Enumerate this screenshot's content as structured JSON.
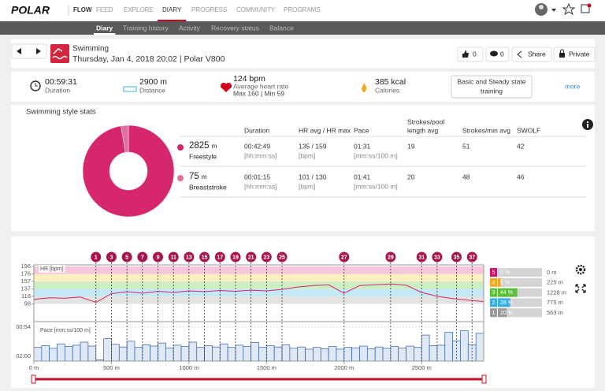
{
  "nav": {
    "logo": "POLAR",
    "items": [
      "FLOW",
      "FEED",
      "EXPLORE",
      "DIARY",
      "PROGRESS",
      "COMMUNITY",
      "PROGRAMS"
    ],
    "active": 3
  },
  "subnav": {
    "items": [
      "Diary",
      "Training history",
      "Activity",
      "Recovery status",
      "Balance"
    ],
    "active": 0
  },
  "session": {
    "sport": "Swimming",
    "subtitle": "Thursday, Jan 4, 2018 20:02 | Polar V800",
    "likes": 0,
    "comments": 0,
    "share": "Share",
    "privacy": "Private"
  },
  "summary": {
    "items": [
      {
        "value": "00:59:31",
        "label": "Duration"
      },
      {
        "value": "2900 m",
        "label": "Distance"
      },
      {
        "value": "124 bpm",
        "label": "Average heart rate",
        "detail": "Max 160 | Min 59"
      },
      {
        "value": "385 kcal",
        "label": "Calories"
      }
    ],
    "benefit": [
      "Basic and Steady state",
      "training"
    ],
    "more": "more"
  },
  "style_stats": {
    "title": "Swimming style stats",
    "columns": [
      [
        "Duration"
      ],
      [
        "HR avg / HR max"
      ],
      [
        "Pace"
      ],
      [
        "Strokes/pool",
        "length avg"
      ],
      [
        "Strokes/min avg"
      ],
      [
        "SWOLF"
      ]
    ],
    "rows": [
      {
        "distance": 2825,
        "unit": "m",
        "style": "Freestyle",
        "color": "#d6266d",
        "cells": [
          [
            "00:42:49",
            "[hh:mm:ss]"
          ],
          [
            "135 / 159",
            "[bpm]"
          ],
          [
            "01:31",
            "[mm:ss/100 m]"
          ],
          [
            19
          ],
          [
            51
          ],
          [
            42
          ]
        ]
      },
      {
        "distance": 75,
        "unit": "m",
        "style": "Breaststroke",
        "color": "#e36f9f",
        "cells": [
          [
            "00:01:15",
            "[hh:mm:ss]"
          ],
          [
            "101 / 130",
            "[bpm]"
          ],
          [
            "01:41",
            "[mm:ss/100 m]"
          ],
          [
            20
          ],
          [
            48
          ],
          [
            46
          ]
        ]
      }
    ]
  },
  "laps": {
    "labels": [
      1,
      3,
      5,
      7,
      9,
      11,
      13,
      15,
      17,
      19,
      21,
      23,
      25,
      27,
      29,
      31,
      33,
      35,
      37
    ],
    "x": [
      400,
      500,
      600,
      700,
      800,
      900,
      1000,
      1100,
      1200,
      1300,
      1400,
      1500,
      1600,
      2000,
      2300,
      2500,
      2600,
      2725,
      2825
    ],
    "color": "#a8164f"
  },
  "chart_data": [
    {
      "type": "line",
      "y_label": "HR [bpm]",
      "color": "#d6266d",
      "xlim": [
        0,
        2900
      ],
      "ylim": [
        58,
        200
      ],
      "yticks": [
        98,
        118,
        137,
        157,
        176,
        196
      ],
      "band_colors": [
        "#e3e3e3",
        "#c4e9f5",
        "#cdeec4",
        "#fcefc0",
        "#f8c6db"
      ],
      "xticks": [
        {
          "value": 0,
          "label": "0 m"
        },
        {
          "value": 500,
          "label": "500 m"
        },
        {
          "value": 1000,
          "label": "1000 m"
        },
        {
          "value": 1500,
          "label": "1500 m"
        },
        {
          "value": 2000,
          "label": "2000 m"
        },
        {
          "value": 2500,
          "label": "2500 m"
        }
      ],
      "x": [
        0,
        100,
        200,
        300,
        400,
        500,
        600,
        700,
        800,
        900,
        1000,
        1100,
        1200,
        1300,
        1400,
        1500,
        1600,
        1700,
        1800,
        1900,
        2000,
        2100,
        2200,
        2300,
        2400,
        2500,
        2600,
        2700,
        2800,
        2900
      ],
      "values": [
        110,
        114,
        113,
        116,
        102,
        125,
        130,
        126,
        131,
        128,
        132,
        130,
        133,
        131,
        134,
        132,
        136,
        142,
        146,
        148,
        126,
        146,
        148,
        150,
        147,
        128,
        118,
        112,
        108,
        104
      ]
    },
    {
      "type": "bar",
      "y_label": "Pace [mm:ss/100 m]",
      "color": "#2e5fa8",
      "xlim": [
        0,
        2900
      ],
      "ylim": [
        131,
        45
      ],
      "yticks": [
        {
          "value": 54,
          "label": "00:54"
        },
        {
          "value": 120,
          "label": "02:00"
        }
      ],
      "x": [
        0,
        50,
        100,
        150,
        200,
        250,
        300,
        350,
        400,
        450,
        500,
        550,
        600,
        650,
        700,
        750,
        800,
        850,
        900,
        950,
        1000,
        1050,
        1100,
        1150,
        1200,
        1250,
        1300,
        1350,
        1400,
        1450,
        1500,
        1550,
        1600,
        1650,
        1700,
        1750,
        1800,
        1850,
        1900,
        1950,
        2000,
        2050,
        2100,
        2150,
        2200,
        2250,
        2300,
        2350,
        2400,
        2450,
        2500,
        2550,
        2600,
        2650,
        2700,
        2750,
        2800,
        2850
      ],
      "values": [
        100,
        96,
        102,
        92,
        98,
        95,
        88,
        97,
        128,
        80,
        93,
        99,
        86,
        100,
        94,
        97,
        90,
        101,
        95,
        98,
        88,
        100,
        96,
        99,
        92,
        100,
        95,
        98,
        89,
        100,
        96,
        99,
        94,
        102,
        99,
        104,
        100,
        103,
        98,
        104,
        100,
        101,
        97,
        103,
        99,
        102,
        98,
        101,
        97,
        100,
        72,
        96,
        95,
        66,
        85,
        62,
        94,
        68
      ]
    }
  ],
  "zones": {
    "labels": [
      5,
      4,
      3,
      2,
      1
    ],
    "colors": [
      "#c8146e",
      "#f5a623",
      "#5bbf3c",
      "#3aaee0",
      "#9a9a9a"
    ],
    "percent": [
      0,
      6,
      44,
      28,
      20
    ],
    "percent_labels": [
      "0 %",
      "6 %",
      "44 %",
      "28 %",
      "20 %"
    ],
    "distance": [
      0,
      225,
      1228,
      775,
      563
    ],
    "distance_labels": [
      "0 m",
      "225 m",
      "1228 m",
      "775 m",
      "563 m"
    ]
  }
}
